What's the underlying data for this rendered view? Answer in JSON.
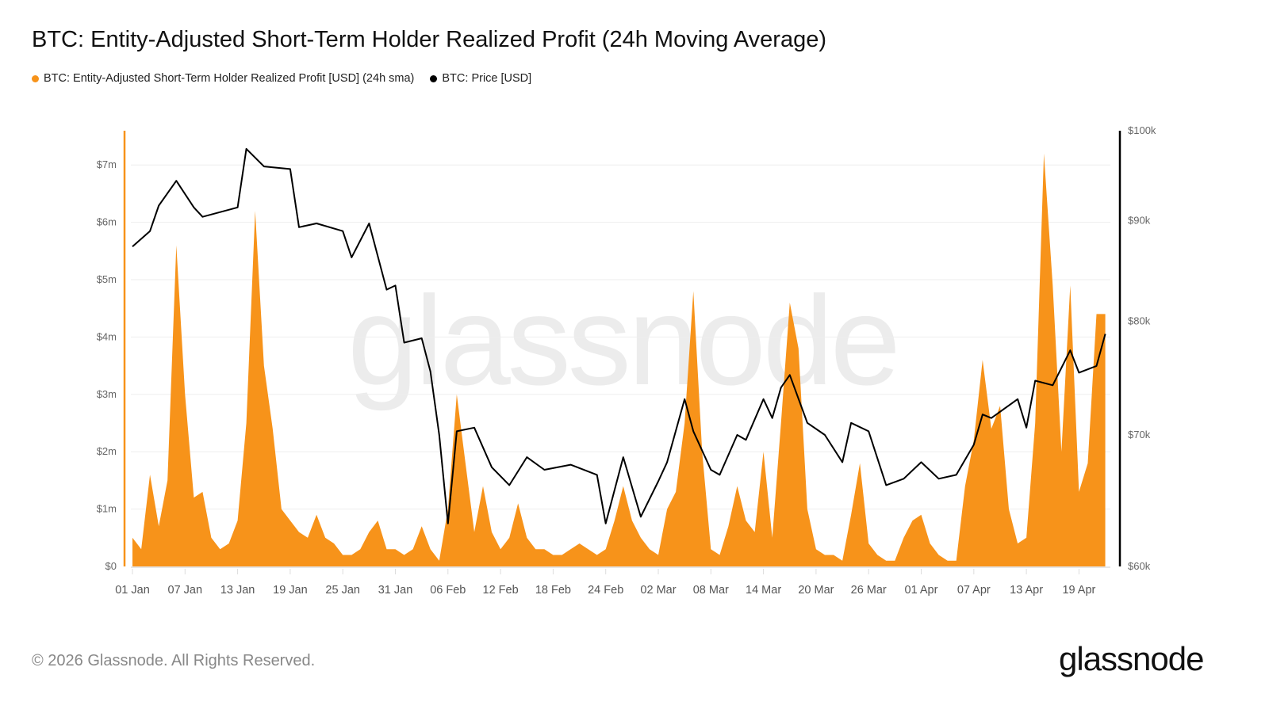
{
  "title": "BTC: Entity-Adjusted Short-Term Holder Realized Profit (24h Moving Average)",
  "legend": [
    {
      "label": "BTC: Entity-Adjusted Short-Term Holder Realized Profit [USD] (24h sma)",
      "color": "#f7931a"
    },
    {
      "label": "BTC: Price [USD]",
      "color": "#000000"
    }
  ],
  "footer": "© 2026 Glassnode. All Rights Reserved.",
  "logo": "glassnode",
  "watermark": "glassnode",
  "chart_data": {
    "type": "area+line",
    "title": "BTC: Entity-Adjusted Short-Term Holder Realized Profit (24h Moving Average)",
    "grid": true,
    "legend_position": "top-left",
    "x_ticks": [
      "01 Jan",
      "07 Jan",
      "13 Jan",
      "19 Jan",
      "25 Jan",
      "31 Jan",
      "06 Feb",
      "12 Feb",
      "18 Feb",
      "24 Feb",
      "02 Mar",
      "08 Mar",
      "14 Mar",
      "20 Mar",
      "26 Mar",
      "01 Apr",
      "07 Apr",
      "13 Apr",
      "19 Apr"
    ],
    "left_axis": {
      "ticks": [
        "$0",
        "$1m",
        "$2m",
        "$3m",
        "$4m",
        "$5m",
        "$6m",
        "$7m"
      ],
      "ylim_usd_m": [
        0,
        7.6
      ],
      "scale": "linear"
    },
    "right_axis": {
      "ticks": [
        "$60k",
        "$70k",
        "$80k",
        "$90k",
        "$100k"
      ],
      "ylim_usd": [
        60000,
        100000
      ],
      "scale": "log"
    },
    "profit_series": {
      "name": "BTC: Entity-Adjusted Short-Term Holder Realized Profit [USD] (24h sma)",
      "unit": "USD millions",
      "color": "#f7931a",
      "values": [
        0.5,
        0.3,
        1.6,
        0.7,
        1.5,
        5.6,
        3.0,
        1.2,
        1.3,
        0.5,
        0.3,
        0.4,
        0.8,
        2.5,
        6.2,
        3.5,
        2.4,
        1.0,
        0.8,
        0.6,
        0.5,
        0.9,
        0.5,
        0.4,
        0.2,
        0.2,
        0.3,
        0.6,
        0.8,
        0.3,
        0.3,
        0.2,
        0.3,
        0.7,
        0.3,
        0.1,
        1.0,
        3.0,
        1.8,
        0.6,
        1.4,
        0.6,
        0.3,
        0.5,
        1.1,
        0.5,
        0.3,
        0.3,
        0.2,
        0.2,
        0.3,
        0.4,
        0.3,
        0.2,
        0.3,
        0.8,
        1.4,
        0.8,
        0.5,
        0.3,
        0.2,
        1.0,
        1.3,
        2.5,
        4.8,
        2.0,
        0.3,
        0.2,
        0.7,
        1.4,
        0.8,
        0.6,
        2.0,
        0.5,
        2.5,
        4.6,
        3.8,
        1.0,
        0.3,
        0.2,
        0.2,
        0.1,
        0.9,
        1.8,
        0.4,
        0.2,
        0.1,
        0.1,
        0.5,
        0.8,
        0.9,
        0.4,
        0.2,
        0.1,
        0.1,
        1.4,
        2.2,
        3.6,
        2.4,
        2.8,
        1.0,
        0.4,
        0.5,
        2.5,
        7.2,
        4.9,
        2.0,
        4.9,
        1.3,
        1.8,
        4.4,
        4.4
      ],
      "start_date": "01 Jan"
    },
    "price_series": {
      "name": "BTC: Price [USD]",
      "color": "#000000",
      "points": [
        [
          "01 Jan",
          87300
        ],
        [
          "03 Jan",
          88900
        ],
        [
          "04 Jan",
          91600
        ],
        [
          "06 Jan",
          94300
        ],
        [
          "08 Jan",
          91400
        ],
        [
          "09 Jan",
          90400
        ],
        [
          "13 Jan",
          91400
        ],
        [
          "14 Jan",
          97900
        ],
        [
          "16 Jan",
          95900
        ],
        [
          "19 Jan",
          95600
        ],
        [
          "20 Jan",
          89300
        ],
        [
          "22 Jan",
          89700
        ],
        [
          "25 Jan",
          88900
        ],
        [
          "26 Jan",
          86200
        ],
        [
          "28 Jan",
          89700
        ],
        [
          "30 Jan",
          83000
        ],
        [
          "31 Jan",
          83400
        ],
        [
          "01 Feb",
          78000
        ],
        [
          "03 Feb",
          78400
        ],
        [
          "04 Feb",
          75400
        ],
        [
          "05 Feb",
          70000
        ],
        [
          "06 Feb",
          63100
        ],
        [
          "07 Feb",
          70300
        ],
        [
          "09 Feb",
          70600
        ],
        [
          "11 Feb",
          67400
        ],
        [
          "13 Feb",
          66000
        ],
        [
          "15 Feb",
          68200
        ],
        [
          "17 Feb",
          67200
        ],
        [
          "20 Feb",
          67600
        ],
        [
          "23 Feb",
          66800
        ],
        [
          "24 Feb",
          63100
        ],
        [
          "26 Feb",
          68200
        ],
        [
          "28 Feb",
          63600
        ],
        [
          "02 Mar",
          66300
        ],
        [
          "03 Mar",
          67800
        ],
        [
          "05 Mar",
          73000
        ],
        [
          "06 Mar",
          70300
        ],
        [
          "08 Mar",
          67200
        ],
        [
          "09 Mar",
          66800
        ],
        [
          "11 Mar",
          70000
        ],
        [
          "12 Mar",
          69600
        ],
        [
          "14 Mar",
          73000
        ],
        [
          "15 Mar",
          71400
        ],
        [
          "16 Mar",
          74000
        ],
        [
          "17 Mar",
          75100
        ],
        [
          "19 Mar",
          71000
        ],
        [
          "21 Mar",
          70000
        ],
        [
          "23 Mar",
          67800
        ],
        [
          "24 Mar",
          71000
        ],
        [
          "26 Mar",
          70300
        ],
        [
          "28 Mar",
          66000
        ],
        [
          "30 Mar",
          66500
        ],
        [
          "01 Apr",
          67800
        ],
        [
          "03 Apr",
          66500
        ],
        [
          "05 Apr",
          66800
        ],
        [
          "07 Apr",
          69200
        ],
        [
          "08 Apr",
          71700
        ],
        [
          "09 Apr",
          71400
        ],
        [
          "12 Apr",
          73000
        ],
        [
          "13 Apr",
          70600
        ],
        [
          "14 Apr",
          74600
        ],
        [
          "16 Apr",
          74200
        ],
        [
          "18 Apr",
          77300
        ],
        [
          "19 Apr",
          75300
        ],
        [
          "21 Apr",
          75900
        ],
        [
          "22 Apr",
          78800
        ]
      ]
    }
  }
}
